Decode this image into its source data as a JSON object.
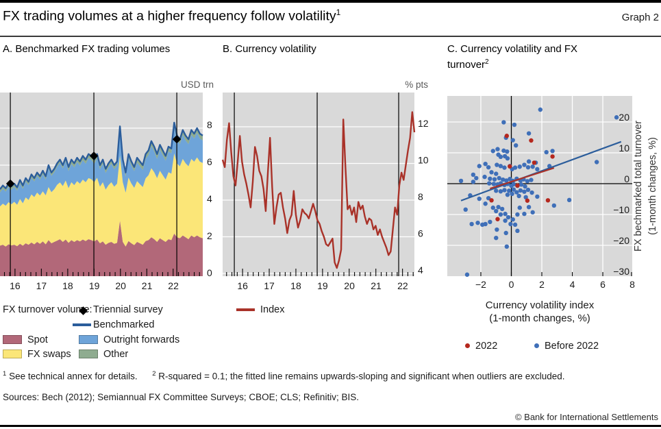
{
  "header": {
    "title": "FX trading volumes at a higher frequency follow volatility",
    "title_sup": "1",
    "graph_label": "Graph 2"
  },
  "panel_a": {
    "title": "A. Benchmarked FX trading volumes",
    "unit": "USD trn"
  },
  "panel_b": {
    "title": "B. Currency volatility",
    "unit": "% pts"
  },
  "panel_c": {
    "title": "C. Currency volatility and FX turnover",
    "title_sup": "2",
    "xlabel_line1": "Currency volatility index",
    "xlabel_line2": "(1-month changes, %)",
    "ylabel_line1": "FX bechmarked total turnover",
    "ylabel_line2": "(1-month changes, %)",
    "legend_2022": "2022",
    "legend_before": "Before 2022"
  },
  "legend_a": {
    "prefix": "FX turnover volume:",
    "triennial": "Triennial survey",
    "benchmarked": "Benchmarked",
    "spot": "Spot",
    "outright_forwards": "Outright forwards",
    "fx_swaps": "FX swaps",
    "other": "Other"
  },
  "legend_b": {
    "index": "Index"
  },
  "footnotes": {
    "sup1": "1",
    "text1": "See technical annex for details.",
    "sup2": "2",
    "text2": "R-squared = 0.1; the fitted line remains upwards-sloping and significant when outliers are excluded."
  },
  "sources": "Sources: Bech (2012); Semiannual FX Committee Surveys; CBOE; CLS; Refinitiv; BIS.",
  "copyright": "© Bank for International Settlements",
  "colors": {
    "panel_bg": "#d9d9d9",
    "grid": "#ffffff",
    "spot": "#b26879",
    "fx_swaps": "#fbe678",
    "outright_forwards": "#6ea4d9",
    "other": "#8fac90",
    "benchmarked_line": "#2b5d9b",
    "index_line": "#a93229",
    "scatter_blue": "#3f6fb8",
    "scatter_red": "#b5281e",
    "survey_marker": "#000000",
    "axis_black": "#000000"
  },
  "chart_data": [
    {
      "id": "a",
      "type": "area",
      "title": "A. Benchmarked FX trading volumes",
      "ylabel": "USD trn",
      "ylim": [
        0,
        9.9
      ],
      "yticks": [
        0,
        2,
        4,
        6,
        8
      ],
      "grid": true,
      "x_year_ticks": [
        "16",
        "17",
        "18",
        "19",
        "20",
        "21",
        "22"
      ],
      "x_year_tick_pos": [
        0.074,
        0.204,
        0.334,
        0.465,
        0.595,
        0.725,
        0.855
      ],
      "survey_vlines": [
        0.051,
        0.463,
        0.872
      ],
      "triennial_points": [
        {
          "pos": 0.051,
          "value": 5.0
        },
        {
          "pos": 0.463,
          "value": 6.5
        },
        {
          "pos": 0.872,
          "value": 7.4
        }
      ],
      "stack_order_bottom_to_top": [
        "spot",
        "fx_swaps",
        "outright_forwards",
        "other"
      ],
      "fx_swaps_note": "fx_swaps = benchmarked_total - spot - outright_forwards - other",
      "spot": [
        1.65,
        1.7,
        1.6,
        1.72,
        1.66,
        1.7,
        1.62,
        1.75,
        1.65,
        1.78,
        1.7,
        1.82,
        1.72,
        1.85,
        1.75,
        1.88,
        1.72,
        1.95,
        1.78,
        1.85,
        1.92,
        2.0,
        1.85,
        1.98,
        1.8,
        1.95,
        1.85,
        1.95,
        1.88,
        1.98,
        1.9,
        2.0,
        1.95,
        1.88,
        1.98,
        1.78,
        1.88,
        1.7,
        1.8,
        1.85,
        1.75,
        1.8,
        3.0,
        1.85,
        1.6,
        1.9,
        1.78,
        1.68,
        1.85,
        1.78,
        1.7,
        1.9,
        1.95,
        2.1,
        2.0,
        1.85,
        2.05,
        1.95,
        1.85,
        2.0,
        1.95,
        2.3,
        2.1,
        2.05,
        2.2,
        2.1,
        2.0,
        2.2,
        2.1,
        2.2,
        2.1,
        2.05
      ],
      "outright_forwards": [
        0.75,
        0.8,
        0.76,
        0.82,
        0.78,
        0.8,
        0.76,
        0.85,
        0.78,
        0.86,
        0.8,
        0.9,
        0.84,
        0.9,
        0.86,
        0.93,
        0.85,
        1.0,
        0.88,
        0.92,
        0.98,
        1.05,
        0.95,
        1.05,
        0.92,
        1.0,
        0.96,
        1.04,
        0.98,
        1.06,
        1.0,
        1.08,
        1.04,
        1.0,
        1.06,
        0.94,
        1.0,
        0.9,
        0.96,
        1.0,
        0.94,
        0.98,
        1.35,
        1.0,
        0.86,
        1.05,
        0.97,
        0.9,
        1.0,
        0.97,
        0.92,
        1.05,
        1.08,
        1.2,
        1.12,
        1.04,
        1.14,
        1.08,
        1.02,
        1.12,
        1.1,
        1.4,
        1.25,
        1.2,
        1.3,
        1.24,
        1.2,
        1.3,
        1.25,
        1.32,
        1.25,
        1.22
      ],
      "other": [
        0.18,
        0.18,
        0.18,
        0.18,
        0.18,
        0.18,
        0.18,
        0.18,
        0.18,
        0.18,
        0.18,
        0.18,
        0.18,
        0.18,
        0.18,
        0.18,
        0.18,
        0.18,
        0.18,
        0.18,
        0.18,
        0.18,
        0.18,
        0.18,
        0.22,
        0.22,
        0.22,
        0.22,
        0.22,
        0.22,
        0.22,
        0.22,
        0.22,
        0.22,
        0.22,
        0.22,
        0.22,
        0.22,
        0.22,
        0.22,
        0.22,
        0.22,
        0.22,
        0.22,
        0.22,
        0.22,
        0.22,
        0.22,
        0.26,
        0.26,
        0.26,
        0.26,
        0.26,
        0.26,
        0.26,
        0.26,
        0.26,
        0.26,
        0.26,
        0.26,
        0.26,
        0.26,
        0.26,
        0.26,
        0.26,
        0.26,
        0.26,
        0.26,
        0.26,
        0.26,
        0.26,
        0.26
      ],
      "benchmarked_total": [
        4.7,
        4.9,
        4.75,
        5.0,
        4.85,
        5.0,
        4.8,
        5.2,
        4.9,
        5.3,
        5.1,
        5.5,
        5.3,
        5.6,
        5.4,
        5.7,
        5.4,
        6.0,
        5.6,
        5.8,
        6.1,
        6.3,
        6.0,
        6.4,
        5.9,
        6.3,
        6.1,
        6.4,
        6.2,
        6.5,
        6.3,
        6.6,
        6.5,
        6.3,
        6.6,
        6.0,
        6.3,
        5.8,
        6.1,
        6.3,
        6.0,
        6.2,
        8.1,
        6.3,
        5.6,
        6.6,
        6.2,
        5.9,
        6.4,
        6.2,
        6.0,
        6.6,
        6.8,
        7.3,
        7.0,
        6.6,
        7.1,
        6.8,
        6.5,
        7.0,
        6.9,
        8.3,
        7.6,
        7.4,
        7.9,
        7.6,
        7.4,
        7.9,
        7.7,
        8.0,
        7.7,
        7.6
      ]
    },
    {
      "id": "b",
      "type": "line",
      "title": "B. Currency volatility",
      "ylabel": "% pts",
      "ylim": [
        3.85,
        13.9
      ],
      "yticks": [
        4,
        6,
        8,
        10,
        12
      ],
      "grid": true,
      "x_year_ticks": [
        "16",
        "17",
        "18",
        "19",
        "20",
        "21",
        "22"
      ],
      "x_year_tick_pos": [
        0.104,
        0.243,
        0.382,
        0.521,
        0.661,
        0.8,
        0.939
      ],
      "survey_vlines": [
        0.061,
        0.493,
        0.918
      ],
      "series_name": "Index",
      "index": [
        10.2,
        9.8,
        11.3,
        12.2,
        10.6,
        9.3,
        8.8,
        10.1,
        11.5,
        10.1,
        9.4,
        8.9,
        8.3,
        7.6,
        9.0,
        10.9,
        10.4,
        9.6,
        9.3,
        8.6,
        7.4,
        9.5,
        11.4,
        8.7,
        6.7,
        7.6,
        8.3,
        8.4,
        7.6,
        7.0,
        6.2,
        6.9,
        7.2,
        8.5,
        7.2,
        6.5,
        6.9,
        7.5,
        7.3,
        7.2,
        7.0,
        7.4,
        7.8,
        7.4,
        6.9,
        6.7,
        6.3,
        6.0,
        5.6,
        5.5,
        5.7,
        5.9,
        4.6,
        4.3,
        4.7,
        5.3,
        12.4,
        9.8,
        7.5,
        7.7,
        7.2,
        7.6,
        6.8,
        7.9,
        7.5,
        7.7,
        7.1,
        6.7,
        7.0,
        6.9,
        6.4,
        6.6,
        6.1,
        6.4,
        6.0,
        5.7,
        5.4,
        5.0,
        5.2,
        6.4,
        7.6,
        7.2,
        8.8,
        9.5,
        9.1,
        9.9,
        10.7,
        11.4,
        12.8,
        11.7
      ]
    },
    {
      "id": "c",
      "type": "scatter",
      "title": "C. Currency volatility and FX turnover",
      "xlabel": "Currency volatility index (1-month changes, %)",
      "ylabel": "FX bechmarked total turnover (1-month changes, %)",
      "xlim": [
        -4.2,
        7.93
      ],
      "ylim": [
        -30,
        28.4
      ],
      "xticks": [
        -2,
        0,
        2,
        4,
        6,
        8
      ],
      "yticks": [
        20,
        10,
        0,
        -10,
        -20,
        -30
      ],
      "grid": true,
      "series": [
        {
          "name": "Before 2022",
          "color_key": "scatter_blue",
          "points": [
            [
              1.9,
              24
            ],
            [
              6.9,
              21.5
            ],
            [
              -0.5,
              19.9
            ],
            [
              0.2,
              19.1
            ],
            [
              -0.35,
              14.9
            ],
            [
              1.15,
              16.3
            ],
            [
              0.1,
              14.1
            ],
            [
              0.3,
              12.4
            ],
            [
              -0.9,
              11.2
            ],
            [
              -1.2,
              10.6
            ],
            [
              -0.5,
              10.7
            ],
            [
              -0.28,
              10.4
            ],
            [
              -0.85,
              9.4
            ],
            [
              -0.7,
              8.7
            ],
            [
              -0.42,
              8.9
            ],
            [
              -0.25,
              8.2
            ],
            [
              2.3,
              10.2
            ],
            [
              2.7,
              10.6
            ],
            [
              1.15,
              7.2
            ],
            [
              1.6,
              6.8
            ],
            [
              2.5,
              5.7
            ],
            [
              5.6,
              7.0
            ],
            [
              -0.95,
              6.1
            ],
            [
              -0.7,
              5.7
            ],
            [
              -0.45,
              5.2
            ],
            [
              -2.1,
              5.7
            ],
            [
              -1.7,
              6.4
            ],
            [
              -1.5,
              5.3
            ],
            [
              -0.1,
              5.7
            ],
            [
              0.05,
              4.7
            ],
            [
              0.25,
              5.2
            ],
            [
              0.55,
              5.5
            ],
            [
              0.85,
              6.1
            ],
            [
              1.1,
              5.3
            ],
            [
              1.4,
              5.5
            ],
            [
              1.7,
              4.7
            ],
            [
              -1.3,
              3.7
            ],
            [
              -1.0,
              3.2
            ],
            [
              -2.5,
              2.9
            ],
            [
              -2.3,
              1.8
            ],
            [
              -1.75,
              2.2
            ],
            [
              -1.4,
              1.6
            ],
            [
              -1.1,
              1.4
            ],
            [
              -0.8,
              1.8
            ],
            [
              -0.55,
              1.3
            ],
            [
              -0.33,
              1.0
            ],
            [
              -0.1,
              1.5
            ],
            [
              0.1,
              0.9
            ],
            [
              0.35,
              1.6
            ],
            [
              0.6,
              1.0
            ],
            [
              0.8,
              1.4
            ],
            [
              1.05,
              0.8
            ],
            [
              1.3,
              1.2
            ],
            [
              -3.3,
              0.9
            ],
            [
              -2.5,
              0.6
            ],
            [
              -1.45,
              0.1
            ],
            [
              -1.15,
              -0.1
            ],
            [
              -0.9,
              -0.25
            ],
            [
              -0.7,
              0.1
            ],
            [
              -0.45,
              -0.4
            ],
            [
              -0.25,
              -0.1
            ],
            [
              0.0,
              -0.7
            ],
            [
              0.15,
              -0.2
            ],
            [
              0.4,
              -0.7
            ],
            [
              0.65,
              -0.3
            ],
            [
              0.9,
              -0.9
            ],
            [
              0.15,
              -1.9
            ],
            [
              -0.15,
              -2.3
            ],
            [
              -0.45,
              -2.1
            ],
            [
              -0.7,
              -2.5
            ],
            [
              -1.0,
              -2.3
            ],
            [
              0.35,
              -2.8
            ],
            [
              0.6,
              -2.2
            ],
            [
              0.85,
              -2.6
            ],
            [
              1.1,
              -2.0
            ],
            [
              1.35,
              -2.9
            ],
            [
              0.05,
              -3.3
            ],
            [
              -0.25,
              -3.6
            ],
            [
              0.5,
              -4.0
            ],
            [
              0.95,
              -4.4
            ],
            [
              1.7,
              -4.2
            ],
            [
              -2.7,
              -3.8
            ],
            [
              -2.1,
              -4.9
            ],
            [
              -1.7,
              -6.5
            ],
            [
              -1.5,
              -4.7
            ],
            [
              -3.0,
              -8.4
            ],
            [
              -1.2,
              -7.8
            ],
            [
              -1.0,
              -8.9
            ],
            [
              -0.85,
              -7.6
            ],
            [
              -0.7,
              -10.0
            ],
            [
              -0.6,
              -8.2
            ],
            [
              -0.4,
              -9.8
            ],
            [
              -0.4,
              -12.0
            ],
            [
              -0.2,
              -10.9
            ],
            [
              -0.05,
              -13.1
            ],
            [
              0.1,
              -11.6
            ],
            [
              0.25,
              -13.3
            ],
            [
              0.4,
              -10.0
            ],
            [
              0.55,
              -7.8
            ],
            [
              0.85,
              -9.8
            ],
            [
              1.15,
              -7.6
            ],
            [
              1.4,
              -9.3
            ],
            [
              2.8,
              -7.1
            ],
            [
              3.8,
              -5.3
            ],
            [
              -2.2,
              -12.7
            ],
            [
              -1.4,
              -12.4
            ],
            [
              -1.9,
              -13.3
            ],
            [
              -2.6,
              -13.1
            ],
            [
              -1.7,
              -13.1
            ],
            [
              0.4,
              -15.3
            ],
            [
              -0.35,
              -16.0
            ],
            [
              -0.95,
              -14.9
            ],
            [
              -1.0,
              -17.6
            ],
            [
              -0.3,
              -20.4
            ],
            [
              -2.9,
              -29.5
            ]
          ]
        },
        {
          "name": "2022",
          "color_key": "scatter_red",
          "points": [
            [
              -0.3,
              15.5
            ],
            [
              1.3,
              14.0
            ],
            [
              2.7,
              8.8
            ],
            [
              1.5,
              6.8
            ],
            [
              -0.1,
              5.6
            ],
            [
              0.4,
              -0.6
            ],
            [
              -1.3,
              -5.4
            ],
            [
              1.05,
              -5.5
            ],
            [
              2.4,
              -5.4
            ],
            [
              -0.9,
              -11.5
            ]
          ]
        }
      ],
      "fit_lines": [
        {
          "name": "fit-before-2022",
          "color_key": "benchmarked_line",
          "from": [
            -3.3,
            -5.5
          ],
          "to": [
            7.2,
            13.6
          ]
        },
        {
          "name": "fit-2022",
          "color_key": "index_line",
          "from": [
            -1.4,
            -1.6
          ],
          "to": [
            2.8,
            5.1
          ]
        }
      ]
    }
  ]
}
